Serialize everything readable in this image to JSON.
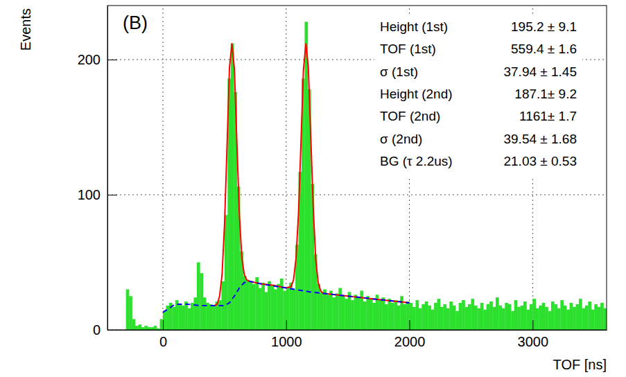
{
  "chart_data": {
    "type": "histogram",
    "panel_label": "(B)",
    "x_label": "TOF [ns]",
    "y_label": "Events",
    "xlim": [
      -450,
      3600
    ],
    "ylim": [
      0,
      240
    ],
    "xticks": [
      0,
      1000,
      2000,
      3000
    ],
    "yticks": [
      0,
      100,
      200
    ],
    "grid": true,
    "color": "#2ee02e",
    "bins": [
      -450,
      -425,
      -400,
      -375,
      -350,
      -325,
      -300,
      -275,
      -250,
      -225,
      -200,
      -175,
      -150,
      -125,
      -100,
      -75,
      -50,
      -25,
      0,
      25,
      50,
      75,
      100,
      125,
      150,
      175,
      200,
      225,
      250,
      275,
      300,
      325,
      350,
      375,
      400,
      425,
      450,
      475,
      500,
      525,
      550,
      575,
      600,
      625,
      650,
      675,
      700,
      725,
      750,
      775,
      800,
      825,
      850,
      875,
      900,
      925,
      950,
      975,
      1000,
      1025,
      1050,
      1075,
      1100,
      1125,
      1150,
      1175,
      1200,
      1225,
      1250,
      1275,
      1300,
      1325,
      1350,
      1375,
      1400,
      1425,
      1450,
      1475,
      1500,
      1525,
      1550,
      1575,
      1600,
      1625,
      1650,
      1675,
      1700,
      1725,
      1750,
      1775,
      1800,
      1825,
      1850,
      1875,
      1900,
      1925,
      1950,
      1975,
      2000,
      2025,
      2050,
      2075,
      2100,
      2125,
      2150,
      2175,
      2200,
      2225,
      2250,
      2275,
      2300,
      2325,
      2350,
      2375,
      2400,
      2425,
      2450,
      2475,
      2500,
      2525,
      2550,
      2575,
      2600,
      2625,
      2650,
      2675,
      2700,
      2725,
      2750,
      2775,
      2800,
      2825,
      2850,
      2875,
      2900,
      2925,
      2950,
      2975,
      3000,
      3025,
      3050,
      3075,
      3100,
      3125,
      3150,
      3175,
      3200,
      3225,
      3250,
      3275,
      3300,
      3325,
      3350,
      3375,
      3400,
      3425,
      3450,
      3475,
      3500,
      3525,
      3550,
      3575,
      3600
    ],
    "values": [
      0,
      0,
      0,
      0,
      0,
      0,
      30,
      25,
      8,
      3,
      4,
      2,
      3,
      2,
      2,
      3,
      1,
      8,
      14,
      18,
      20,
      17,
      22,
      19,
      18,
      21,
      16,
      20,
      24,
      50,
      42,
      24,
      20,
      19,
      18,
      21,
      22,
      36,
      85,
      186,
      212,
      176,
      106,
      58,
      40,
      37,
      36,
      34,
      39,
      31,
      35,
      28,
      36,
      33,
      30,
      34,
      38,
      29,
      32,
      35,
      30,
      63,
      117,
      186,
      228,
      178,
      108,
      56,
      34,
      28,
      30,
      26,
      29,
      24,
      27,
      31,
      25,
      23,
      28,
      22,
      26,
      24,
      29,
      21,
      25,
      23,
      20,
      26,
      22,
      24,
      19,
      23,
      20,
      22,
      18,
      25,
      19,
      21,
      20,
      17,
      22,
      16,
      19,
      21,
      18,
      15,
      20,
      23,
      17,
      19,
      16,
      21,
      18,
      14,
      20,
      22,
      17,
      19,
      23,
      18,
      16,
      20,
      15,
      19,
      21,
      17,
      24,
      18,
      16,
      20,
      19,
      14,
      22,
      17,
      18,
      21,
      15,
      19,
      23,
      16,
      18,
      20,
      17,
      14,
      21,
      19,
      16,
      22,
      18,
      15,
      20,
      17,
      19,
      23,
      16,
      18,
      21,
      15,
      19,
      17,
      20,
      16
    ],
    "lines": [
      {
        "type": "line",
        "color": "#ff0000",
        "line_style": "solid",
        "x": [
          400,
          420,
          440,
          460,
          480,
          500,
          520,
          540,
          560,
          580,
          600,
          620,
          640,
          660,
          680,
          700,
          800,
          900,
          1000,
          1040,
          1060,
          1080,
          1100,
          1120,
          1140,
          1160,
          1180,
          1200,
          1220,
          1240,
          1260,
          1280,
          1300,
          1400,
          1500,
          1700,
          2000
        ],
        "values": [
          18,
          18,
          19,
          25,
          41,
          78,
          135,
          194,
          212,
          193,
          139,
          86,
          54,
          41,
          37,
          36,
          34,
          33,
          31,
          32,
          37,
          53,
          86,
          138,
          192,
          212,
          194,
          142,
          90,
          52,
          35,
          29,
          27,
          26,
          25,
          23,
          20
        ]
      },
      {
        "type": "line",
        "color": "#0000ff",
        "line_style": "dashed",
        "x": [
          0,
          100,
          200,
          300,
          400,
          500,
          540,
          580,
          620,
          660,
          700,
          800,
          1000,
          1200,
          1500,
          2000
        ],
        "values": [
          13,
          19,
          19,
          18,
          18,
          18,
          20,
          25,
          31,
          35,
          36,
          34,
          31,
          28,
          25,
          20
        ]
      }
    ],
    "stats": [
      {
        "label": "Height (1st)",
        "value": "195.2 ± 9.1"
      },
      {
        "label": "TOF (1st)",
        "value": "559.4 ± 1.6"
      },
      {
        "label": "σ (1st)",
        "value": "37.94 ± 1.45"
      },
      {
        "label": "Height (2nd)",
        "value": "187.1± 9.2"
      },
      {
        "label": "TOF (2nd)",
        "value": "1161± 1.7"
      },
      {
        "label": "σ (2nd)",
        "value": "39.54 ± 1.68"
      },
      {
        "label": "BG (τ 2.2us)",
        "value": "21.03 ± 0.53"
      }
    ]
  }
}
